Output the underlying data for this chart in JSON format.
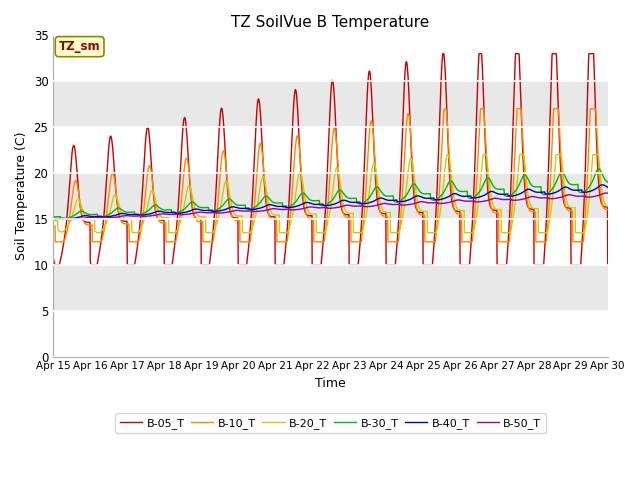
{
  "title": "TZ SoilVue B Temperature",
  "xlabel": "Time",
  "ylabel": "Soil Temperature (C)",
  "ylim": [
    0,
    35
  ],
  "xtick_labels": [
    "Apr 15",
    "Apr 16",
    "Apr 17",
    "Apr 18",
    "Apr 19",
    "Apr 20",
    "Apr 21",
    "Apr 22",
    "Apr 23",
    "Apr 24",
    "Apr 25",
    "Apr 26",
    "Apr 27",
    "Apr 28",
    "Apr 29",
    "Apr 30"
  ],
  "annotation_text": "TZ_sm",
  "legend_labels": [
    "B-05_T",
    "B-10_T",
    "B-20_T",
    "B-30_T",
    "B-40_T",
    "B-50_T"
  ],
  "colors": [
    "#cc0000",
    "#ff8800",
    "#cccc00",
    "#00bb00",
    "#0000cc",
    "#9900aa"
  ],
  "facecolor_bands": [
    "#ffffff",
    "#e8e8e8"
  ],
  "yticks": [
    0,
    5,
    10,
    15,
    20,
    25,
    30,
    35
  ],
  "figsize": [
    6.4,
    4.8
  ],
  "dpi": 100
}
